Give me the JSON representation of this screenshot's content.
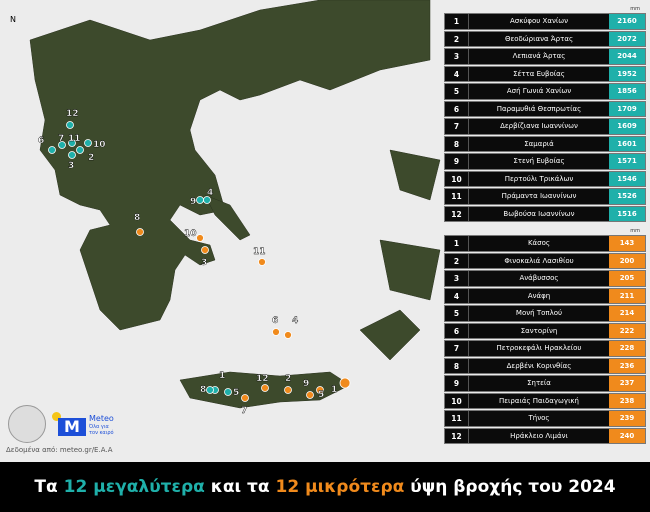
{
  "colors": {
    "teal": "#1fb0aa",
    "orange": "#f08a1c",
    "land": "#3d4a2c"
  },
  "compass": "N",
  "unit": "mm",
  "largest": [
    {
      "rank": "1",
      "name": "Ασκύφου Χανίων",
      "value": "2160"
    },
    {
      "rank": "2",
      "name": "Θεοδώριανα Άρτας",
      "value": "2072"
    },
    {
      "rank": "3",
      "name": "Λεπιανά Άρτας",
      "value": "2044"
    },
    {
      "rank": "4",
      "name": "Σέττα Ευβοίας",
      "value": "1952"
    },
    {
      "rank": "5",
      "name": "Ασή Γωνιά Χανίων",
      "value": "1856"
    },
    {
      "rank": "6",
      "name": "Παραμυθιά Θεσπρωτίας",
      "value": "1709"
    },
    {
      "rank": "7",
      "name": "Δερβίζιανα Ιωαννίνων",
      "value": "1609"
    },
    {
      "rank": "8",
      "name": "Σαμαριά",
      "value": "1601"
    },
    {
      "rank": "9",
      "name": "Στενή Ευβοίας",
      "value": "1571"
    },
    {
      "rank": "10",
      "name": "Περτούλι Τρικάλων",
      "value": "1546"
    },
    {
      "rank": "11",
      "name": "Πράμαντα Ιωαννίνων",
      "value": "1526"
    },
    {
      "rank": "12",
      "name": "Βωβούσα Ιωαννίνων",
      "value": "1516"
    }
  ],
  "smallest": [
    {
      "rank": "1",
      "name": "Κάσος",
      "value": "143"
    },
    {
      "rank": "2",
      "name": "Φινοκαλιά Λασιθίου",
      "value": "200"
    },
    {
      "rank": "3",
      "name": "Ανάβυσσος",
      "value": "205"
    },
    {
      "rank": "4",
      "name": "Ανάφη",
      "value": "211"
    },
    {
      "rank": "5",
      "name": "Μονή Τοπλού",
      "value": "214"
    },
    {
      "rank": "6",
      "name": "Σαντορίνη",
      "value": "222"
    },
    {
      "rank": "7",
      "name": "Πετροκεφάλι Ηρακλείου",
      "value": "228"
    },
    {
      "rank": "8",
      "name": "Δερβένι Κορινθίας",
      "value": "236"
    },
    {
      "rank": "9",
      "name": "Σητεία",
      "value": "237"
    },
    {
      "rank": "10",
      "name": "Πειραιάς Παιδαγωγική",
      "value": "238"
    },
    {
      "rank": "11",
      "name": "Τήνος",
      "value": "239"
    },
    {
      "rank": "12",
      "name": "Ηράκλειο Λιμάνι",
      "value": "240"
    }
  ],
  "logos": {
    "meteo": "Meteo",
    "meteo_tagline": "Όλα για τον καιρό"
  },
  "source": "Δεδομένα από: meteo.gr/Ε.Α.Α",
  "title": {
    "p1": "Τα ",
    "p2": "12 μεγαλύτερα",
    "p3": " και τα ",
    "p4": "12 μικρότερα",
    "p5": " ύψη βροχής του 2024"
  }
}
